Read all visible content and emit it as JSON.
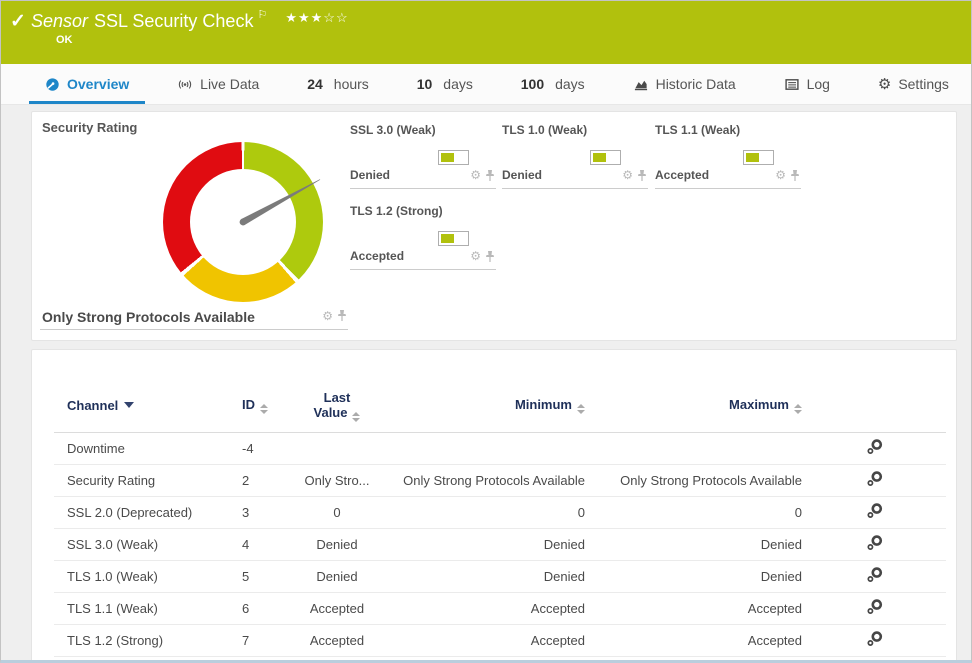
{
  "header": {
    "status_icon": "check",
    "type_label": "Sensor",
    "title": "SSL Security Check",
    "status": "OK",
    "priority_stars_filled": 3,
    "priority_stars_total": 5
  },
  "tabs": [
    {
      "label": "Overview",
      "icon": "gauge-icon",
      "active": true
    },
    {
      "label": "Live Data",
      "icon": "broadcast-icon",
      "active": false
    },
    {
      "num": "24",
      "label": "hours",
      "active": false
    },
    {
      "num": "10",
      "label": "days",
      "active": false
    },
    {
      "num": "100",
      "label": "days",
      "active": false
    },
    {
      "label": "Historic Data",
      "icon": "area-chart-icon",
      "active": false
    },
    {
      "label": "Log",
      "icon": "log-icon",
      "active": false
    },
    {
      "label": "Settings",
      "icon": "gear-icon",
      "active": false
    }
  ],
  "overview": {
    "gauge": {
      "title": "Security Rating",
      "value": "Only Strong Protocols Available"
    },
    "widgets": [
      {
        "title": "SSL 3.0 (Weak)",
        "value": "Denied"
      },
      {
        "title": "TLS 1.0 (Weak)",
        "value": "Denied"
      },
      {
        "title": "TLS 1.1 (Weak)",
        "value": "Accepted"
      },
      {
        "title": "TLS 1.2 (Strong)",
        "value": "Accepted"
      }
    ]
  },
  "chart_data": {
    "type": "pie",
    "subtype": "gauge-donut",
    "title": "Security Rating",
    "current_value": "Only Strong Protocols Available",
    "segments": [
      {
        "name": "good",
        "color": "#aeca0d",
        "start_deg": 1,
        "end_deg": 136
      },
      {
        "name": "warning",
        "color": "#f0c400",
        "start_deg": 139,
        "end_deg": 228
      },
      {
        "name": "danger",
        "color": "#e00c11",
        "start_deg": 231,
        "end_deg": 359
      }
    ],
    "needle_deg_cw_from_top": 61,
    "needle_color": "#7b7b7b",
    "legend": false
  },
  "table": {
    "columns": [
      "Channel",
      "ID",
      "Last Value",
      "Minimum",
      "Maximum"
    ],
    "sorted_by": "Channel",
    "rows": [
      {
        "channel": "Downtime",
        "id": "-4",
        "last": "",
        "min": "",
        "max": ""
      },
      {
        "channel": "Security Rating",
        "id": "2",
        "last": "Only Stro...",
        "min": "Only Strong Protocols Available",
        "max": "Only Strong Protocols Available"
      },
      {
        "channel": "SSL 2.0 (Deprecated)",
        "id": "3",
        "last": "0",
        "min": "0",
        "max": "0"
      },
      {
        "channel": "SSL 3.0 (Weak)",
        "id": "4",
        "last": "Denied",
        "min": "Denied",
        "max": "Denied"
      },
      {
        "channel": "TLS 1.0 (Weak)",
        "id": "5",
        "last": "Denied",
        "min": "Denied",
        "max": "Denied"
      },
      {
        "channel": "TLS 1.1 (Weak)",
        "id": "6",
        "last": "Accepted",
        "min": "Accepted",
        "max": "Accepted"
      },
      {
        "channel": "TLS 1.2 (Strong)",
        "id": "7",
        "last": "Accepted",
        "min": "Accepted",
        "max": "Accepted"
      }
    ]
  },
  "colors": {
    "brand_green": "#b1c10d",
    "active_tab_blue": "#1e86c8",
    "gauge_red": "#e00c11",
    "gauge_yellow": "#f0c400",
    "gauge_green": "#aeca0d",
    "table_header_navy": "#1f3059"
  }
}
